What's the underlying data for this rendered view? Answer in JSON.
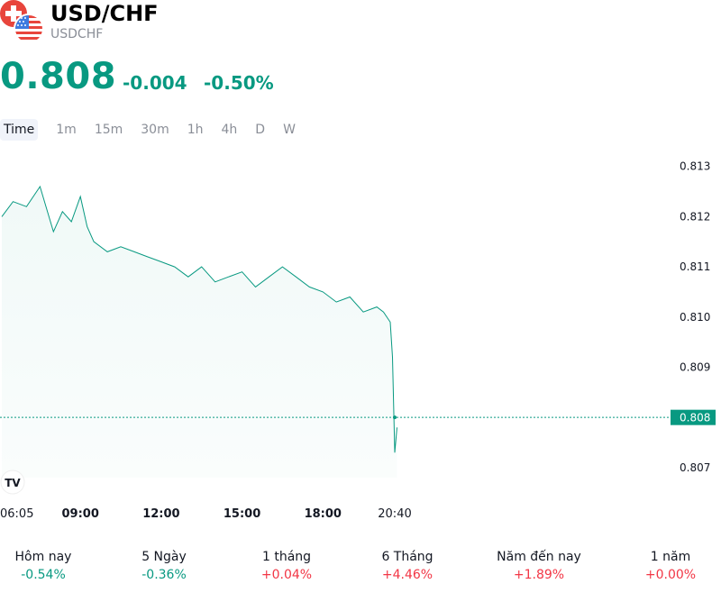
{
  "symbol": {
    "title": "USD/CHF",
    "ticker": "USDCHF",
    "price": "0.808",
    "change": "-0.004",
    "change_pct": "-0.50%"
  },
  "colors": {
    "accent_green": "#089981",
    "accent_red": "#f23645",
    "muted_text": "#8a8e97"
  },
  "tabs": [
    {
      "label": "Time",
      "active": true
    },
    {
      "label": "1m"
    },
    {
      "label": "15m"
    },
    {
      "label": "30m"
    },
    {
      "label": "1h"
    },
    {
      "label": "4h"
    },
    {
      "label": "D"
    },
    {
      "label": "W"
    }
  ],
  "chart_data": {
    "type": "area",
    "current_price_label": "0.808",
    "x_ticks": [
      "06:05",
      "09:00",
      "12:00",
      "15:00",
      "18:00",
      "20:40"
    ],
    "y_ticks": [
      "0.813",
      "0.812",
      "0.811",
      "0.810",
      "0.809",
      "0.808",
      "0.807"
    ],
    "ylim": [
      0.8068,
      0.8133
    ],
    "series": [
      {
        "x": [
          "06:05",
          "06:30",
          "07:00",
          "07:30",
          "08:00",
          "08:20",
          "08:40",
          "09:00",
          "09:15",
          "09:30",
          "10:00",
          "10:30",
          "11:00",
          "11:30",
          "12:00",
          "12:30",
          "13:00",
          "13:30",
          "14:00",
          "14:30",
          "15:00",
          "15:30",
          "16:00",
          "16:30",
          "17:00",
          "17:30",
          "18:00",
          "18:30",
          "19:00",
          "19:30",
          "20:00",
          "20:15",
          "20:30",
          "20:35",
          "20:40",
          "20:45"
        ],
        "values": [
          0.812,
          0.8123,
          0.8122,
          0.8126,
          0.8117,
          0.8121,
          0.8119,
          0.8124,
          0.8118,
          0.8115,
          0.8113,
          0.8114,
          0.8113,
          0.8112,
          0.8111,
          0.811,
          0.8108,
          0.811,
          0.8107,
          0.8108,
          0.8109,
          0.8106,
          0.8108,
          0.811,
          0.8108,
          0.8106,
          0.8105,
          0.8103,
          0.8104,
          0.8101,
          0.8102,
          0.8101,
          0.8099,
          0.8092,
          0.8073,
          0.8078
        ]
      }
    ]
  },
  "performance": [
    {
      "label": "Hôm nay",
      "value": "-0.54%",
      "dir": "neg"
    },
    {
      "label": "5 Ngày",
      "value": "-0.36%",
      "dir": "neg"
    },
    {
      "label": "1 tháng",
      "value": "+0.04%",
      "dir": "pos"
    },
    {
      "label": "6 Tháng",
      "value": "+4.46%",
      "dir": "pos"
    },
    {
      "label": "Năm đến nay",
      "value": "+1.89%",
      "dir": "pos"
    },
    {
      "label": "1 năm",
      "value": "+0.00%",
      "dir": "pos"
    }
  ],
  "branding": {
    "icon": "tradingview-logo-icon"
  }
}
